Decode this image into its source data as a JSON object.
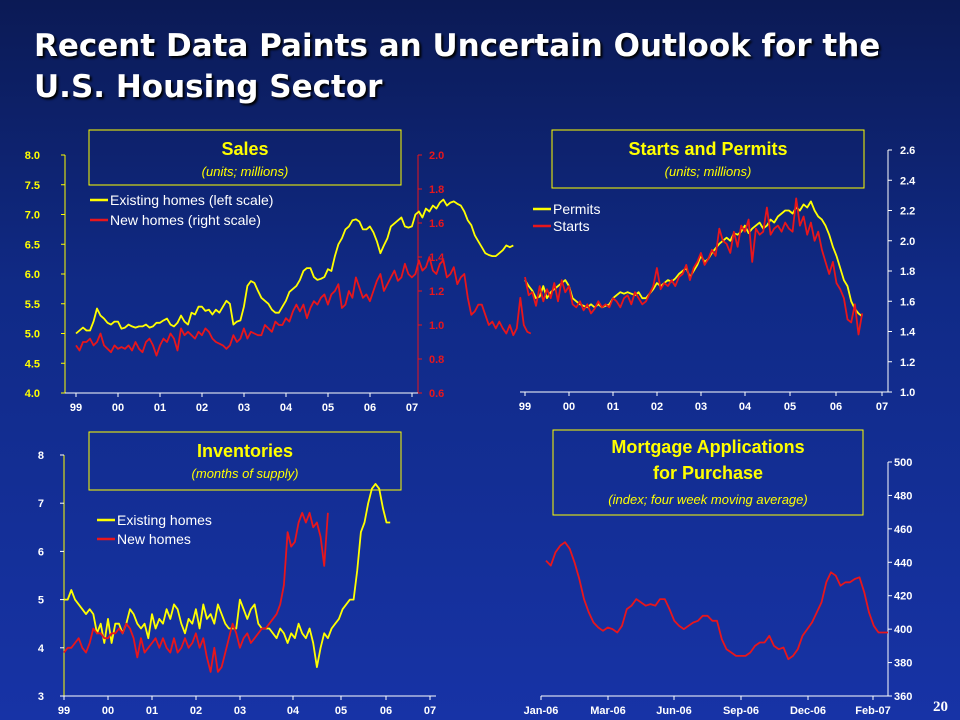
{
  "slide": {
    "title": "Recent Data Paints an Uncertain Outlook for the U.S. Housing Sector",
    "page_number": "20"
  },
  "colors": {
    "background": "#1733a6",
    "yellow_series": "#ffff00",
    "red_series": "#e8161c",
    "left_axis": "#ffff00",
    "right_axis": "#e8161c",
    "box_border": "#ffff00",
    "box_title": "#ffff00",
    "box_subtitle": "#ffff00",
    "axis_text": "#ffffff"
  },
  "chart_data": [
    {
      "id": "sales",
      "type": "line",
      "box_title": "Sales",
      "box_subtitle": "(units; millions)",
      "x_tick_labels": [
        "99",
        "00",
        "01",
        "02",
        "03",
        "04",
        "05",
        "06",
        "07"
      ],
      "y_left": {
        "ticks": [
          "4.0",
          "4.5",
          "5.0",
          "5.5",
          "6.0",
          "6.5",
          "7.0",
          "7.5",
          "8.0"
        ],
        "range": [
          4.0,
          8.0
        ]
      },
      "y_right": {
        "ticks": [
          "0.6",
          "0.8",
          "1.0",
          "1.2",
          "1.4",
          "1.6",
          "1.8",
          "2.0"
        ],
        "range": [
          0.6,
          2.0
        ]
      },
      "legend_position": "upper-left",
      "series": [
        {
          "name": "Existing homes (left scale)",
          "axis": "left",
          "color": "#ffff00",
          "x_start": 1999.0,
          "x_step": 0.0833,
          "values": [
            5.0,
            5.05,
            5.1,
            5.05,
            5.05,
            5.2,
            5.42,
            5.3,
            5.25,
            5.18,
            5.15,
            5.2,
            5.2,
            5.08,
            5.1,
            5.15,
            5.12,
            5.1,
            5.12,
            5.12,
            5.15,
            5.1,
            5.12,
            5.18,
            5.18,
            5.22,
            5.25,
            5.15,
            5.12,
            5.18,
            5.3,
            5.2,
            5.15,
            5.35,
            5.32,
            5.45,
            5.45,
            5.38,
            5.4,
            5.32,
            5.4,
            5.35,
            5.45,
            5.55,
            5.5,
            5.15,
            5.2,
            5.22,
            5.45,
            5.8,
            5.88,
            5.85,
            5.72,
            5.6,
            5.55,
            5.5,
            5.4,
            5.35,
            5.35,
            5.45,
            5.55,
            5.7,
            5.75,
            5.8,
            5.9,
            6.05,
            6.1,
            6.1,
            5.95,
            5.9,
            5.92,
            5.95,
            6.08,
            6.05,
            6.3,
            6.5,
            6.6,
            6.75,
            6.8,
            6.9,
            6.92,
            6.88,
            6.75,
            6.75,
            6.8,
            6.7,
            6.55,
            6.35,
            6.48,
            6.6,
            6.8,
            6.85,
            6.9,
            6.95,
            6.8,
            6.78,
            6.8,
            7.0,
            7.05,
            6.95,
            7.1,
            7.05,
            7.15,
            7.1,
            7.2,
            7.25,
            7.15,
            7.2,
            7.22,
            7.18,
            7.15,
            7.05,
            6.9,
            6.82,
            6.65,
            6.55,
            6.45,
            6.35,
            6.32,
            6.3,
            6.3,
            6.35,
            6.4,
            6.48,
            6.45,
            6.48
          ]
        },
        {
          "name": "New homes (right scale)",
          "axis": "right",
          "color": "#e8161c",
          "x_start": 1999.0,
          "x_step": 0.0833,
          "values": [
            0.88,
            0.85,
            0.9,
            0.9,
            0.92,
            0.88,
            0.9,
            0.95,
            0.88,
            0.86,
            0.84,
            0.88,
            0.86,
            0.87,
            0.86,
            0.88,
            0.85,
            0.9,
            0.86,
            0.84,
            0.9,
            0.92,
            0.88,
            0.82,
            0.88,
            0.92,
            0.9,
            0.95,
            0.92,
            0.85,
            0.98,
            0.94,
            0.96,
            0.94,
            0.92,
            0.96,
            0.94,
            0.98,
            0.96,
            0.92,
            0.9,
            0.89,
            0.88,
            0.86,
            0.88,
            0.94,
            0.9,
            0.92,
            0.98,
            0.92,
            0.96,
            0.95,
            0.94,
            0.94,
            1.0,
            0.98,
            0.96,
            1.02,
            1.0,
            1.0,
            1.04,
            1.02,
            1.08,
            1.12,
            1.08,
            1.12,
            1.04,
            1.1,
            1.14,
            1.12,
            1.16,
            1.18,
            1.12,
            1.18,
            1.2,
            1.24,
            1.1,
            1.12,
            1.2,
            1.16,
            1.28,
            1.22,
            1.16,
            1.18,
            1.14,
            1.2,
            1.26,
            1.3,
            1.2,
            1.24,
            1.28,
            1.32,
            1.26,
            1.28,
            1.36,
            1.3,
            1.28,
            1.3,
            1.38,
            1.32,
            1.34,
            1.4,
            1.32,
            1.3,
            1.36,
            1.38,
            1.28,
            1.3,
            1.34,
            1.24,
            1.28,
            1.3,
            1.16,
            1.06,
            1.08,
            1.12,
            1.12,
            1.06,
            1.0,
            1.02,
            0.98,
            1.02,
            0.98,
            0.95,
            1.0,
            0.94,
            0.98,
            1.16,
            1.0,
            0.96,
            0.95
          ]
        }
      ]
    },
    {
      "id": "starts-permits",
      "type": "line",
      "box_title": "Starts and Permits",
      "box_subtitle": "(units; millions)",
      "x_tick_labels": [
        "99",
        "00",
        "01",
        "02",
        "03",
        "04",
        "05",
        "06",
        "07"
      ],
      "y_right": {
        "ticks": [
          "1.0",
          "1.2",
          "1.4",
          "1.6",
          "1.8",
          "2.0",
          "2.2",
          "2.4",
          "2.6"
        ],
        "range": [
          1.0,
          2.6
        ]
      },
      "legend_position": "upper-left",
      "series": [
        {
          "name": "Permits",
          "axis": "right",
          "color": "#ffff00",
          "x_start": 1999.0,
          "x_step": 0.0833,
          "values": [
            1.74,
            1.7,
            1.67,
            1.62,
            1.63,
            1.7,
            1.62,
            1.66,
            1.68,
            1.7,
            1.72,
            1.74,
            1.7,
            1.62,
            1.6,
            1.58,
            1.57,
            1.56,
            1.58,
            1.56,
            1.58,
            1.56,
            1.57,
            1.58,
            1.62,
            1.64,
            1.66,
            1.65,
            1.66,
            1.65,
            1.64,
            1.66,
            1.62,
            1.62,
            1.65,
            1.68,
            1.72,
            1.7,
            1.72,
            1.74,
            1.73,
            1.75,
            1.78,
            1.8,
            1.82,
            1.76,
            1.8,
            1.84,
            1.9,
            1.86,
            1.88,
            1.92,
            1.95,
            1.98,
            2.0,
            2.02,
            2.0,
            2.05,
            2.04,
            2.06,
            2.1,
            2.05,
            2.08,
            2.1,
            2.12,
            2.08,
            2.1,
            2.14,
            2.12,
            2.16,
            2.18,
            2.2,
            2.2,
            2.18,
            2.22,
            2.2,
            2.24,
            2.22,
            2.26,
            2.2,
            2.16,
            2.14,
            2.1,
            2.04,
            1.96,
            1.9,
            1.82,
            1.74,
            1.7,
            1.6,
            1.55,
            1.52,
            1.5
          ]
        },
        {
          "name": "Starts",
          "axis": "right",
          "color": "#e8161c",
          "x_start": 1999.0,
          "x_step": 0.0833,
          "values": [
            1.76,
            1.64,
            1.66,
            1.57,
            1.7,
            1.6,
            1.68,
            1.62,
            1.72,
            1.6,
            1.74,
            1.66,
            1.7,
            1.58,
            1.56,
            1.6,
            1.54,
            1.58,
            1.52,
            1.55,
            1.6,
            1.56,
            1.58,
            1.56,
            1.62,
            1.6,
            1.56,
            1.62,
            1.64,
            1.58,
            1.66,
            1.62,
            1.58,
            1.6,
            1.65,
            1.7,
            1.82,
            1.68,
            1.72,
            1.7,
            1.74,
            1.7,
            1.76,
            1.78,
            1.84,
            1.74,
            1.82,
            1.86,
            1.92,
            1.84,
            1.88,
            1.94,
            1.9,
            2.08,
            2.0,
            1.98,
            1.92,
            2.06,
            1.96,
            2.1,
            2.06,
            2.14,
            1.86,
            2.08,
            2.04,
            2.06,
            2.22,
            2.04,
            2.08,
            2.1,
            2.06,
            2.12,
            2.08,
            2.06,
            2.28,
            2.1,
            2.16,
            2.04,
            2.12,
            2.0,
            2.06,
            1.94,
            1.86,
            1.78,
            1.86,
            1.72,
            1.68,
            1.62,
            1.48,
            1.46,
            1.58,
            1.38,
            1.52
          ]
        }
      ]
    },
    {
      "id": "inventories",
      "type": "line",
      "box_title": "Inventories",
      "box_subtitle": "(months of supply)",
      "x_tick_labels": [
        "99",
        "00",
        "01",
        "02",
        "03",
        "04",
        "05",
        "06",
        "07"
      ],
      "y_left": {
        "ticks": [
          "3",
          "4",
          "5",
          "6",
          "7",
          "8"
        ],
        "range": [
          3,
          8
        ]
      },
      "legend_position": "upper-left",
      "series": [
        {
          "name": "Existing homes",
          "axis": "left",
          "color": "#ffff00",
          "x_start": 1999.0,
          "x_step": 0.0833,
          "values": [
            5.0,
            5.0,
            5.2,
            5.0,
            4.9,
            4.8,
            4.7,
            4.8,
            4.7,
            4.3,
            4.5,
            4.1,
            4.6,
            4.1,
            4.5,
            4.5,
            4.3,
            4.5,
            4.8,
            4.7,
            4.5,
            4.4,
            4.5,
            4.2,
            4.7,
            4.4,
            4.6,
            4.5,
            4.8,
            4.6,
            4.9,
            4.8,
            4.5,
            4.3,
            4.6,
            4.5,
            4.8,
            4.4,
            4.9,
            4.6,
            4.7,
            4.5,
            4.9,
            4.7,
            4.5,
            4.4,
            4.4,
            4.4,
            5.0,
            4.8,
            4.6,
            4.8,
            4.9,
            4.5,
            4.4,
            4.4,
            4.4,
            4.3,
            4.2,
            4.4,
            4.3,
            4.1,
            4.3,
            4.2,
            4.5,
            4.3,
            4.2,
            4.4,
            4.1,
            3.6,
            4.0,
            4.3,
            4.2,
            4.4,
            4.5,
            4.6,
            4.8,
            4.9,
            5.0,
            5.0,
            5.6,
            6.4,
            6.6,
            7.0,
            7.3,
            7.4,
            7.3,
            6.9,
            6.6,
            6.6
          ]
        },
        {
          "name": "New homes",
          "axis": "left",
          "color": "#e8161c",
          "x_start": 1999.0,
          "x_step": 0.0833,
          "values": [
            3.9,
            4.0,
            4.0,
            4.1,
            4.2,
            4.0,
            3.9,
            4.1,
            4.4,
            4.3,
            4.3,
            4.2,
            4.2,
            4.3,
            4.3,
            4.4,
            4.3,
            4.5,
            4.4,
            4.2,
            3.8,
            4.2,
            3.9,
            4.0,
            4.1,
            4.2,
            4.0,
            4.2,
            4.0,
            3.9,
            4.2,
            3.9,
            4.0,
            4.2,
            4.0,
            4.1,
            4.3,
            4.0,
            4.2,
            3.8,
            3.5,
            4.0,
            3.5,
            3.6,
            3.9,
            4.2,
            4.5,
            4.3,
            4.0,
            4.2,
            4.3,
            4.1,
            4.2,
            4.3,
            4.4,
            4.4,
            4.5,
            4.6,
            4.7,
            4.9,
            5.3,
            6.4,
            6.1,
            6.2,
            6.6,
            6.8,
            6.6,
            6.8,
            6.5,
            6.6,
            6.3,
            5.7,
            6.8
          ]
        }
      ]
    },
    {
      "id": "mortgage-applications",
      "type": "line",
      "box_title_line1": "Mortgage Applications",
      "box_title_line2": "for Purchase",
      "box_subtitle": "(index; four week moving average)",
      "x_tick_labels": [
        "Jan-06",
        "Mar-06",
        "Jun-06",
        "Sep-06",
        "Dec-06",
        "Feb-07"
      ],
      "y_right": {
        "ticks": [
          "360",
          "380",
          "400",
          "420",
          "440",
          "460",
          "480",
          "500"
        ],
        "range": [
          360,
          500
        ]
      },
      "series": [
        {
          "name": "",
          "axis": "right",
          "color": "#e8161c",
          "values": [
            441,
            438,
            446,
            450,
            452,
            448,
            440,
            430,
            418,
            410,
            404,
            401,
            399,
            401,
            400,
            398,
            402,
            412,
            414,
            418,
            416,
            414,
            415,
            414,
            418,
            418,
            412,
            405,
            402,
            400,
            402,
            404,
            405,
            408,
            408,
            405,
            405,
            394,
            388,
            386,
            384,
            384,
            384,
            386,
            390,
            392,
            392,
            396,
            390,
            388,
            389,
            382,
            384,
            388,
            396,
            400,
            404,
            410,
            416,
            428,
            434,
            432,
            426,
            428,
            428,
            430,
            431,
            422,
            410,
            402,
            398,
            398,
            398
          ]
        }
      ]
    }
  ]
}
